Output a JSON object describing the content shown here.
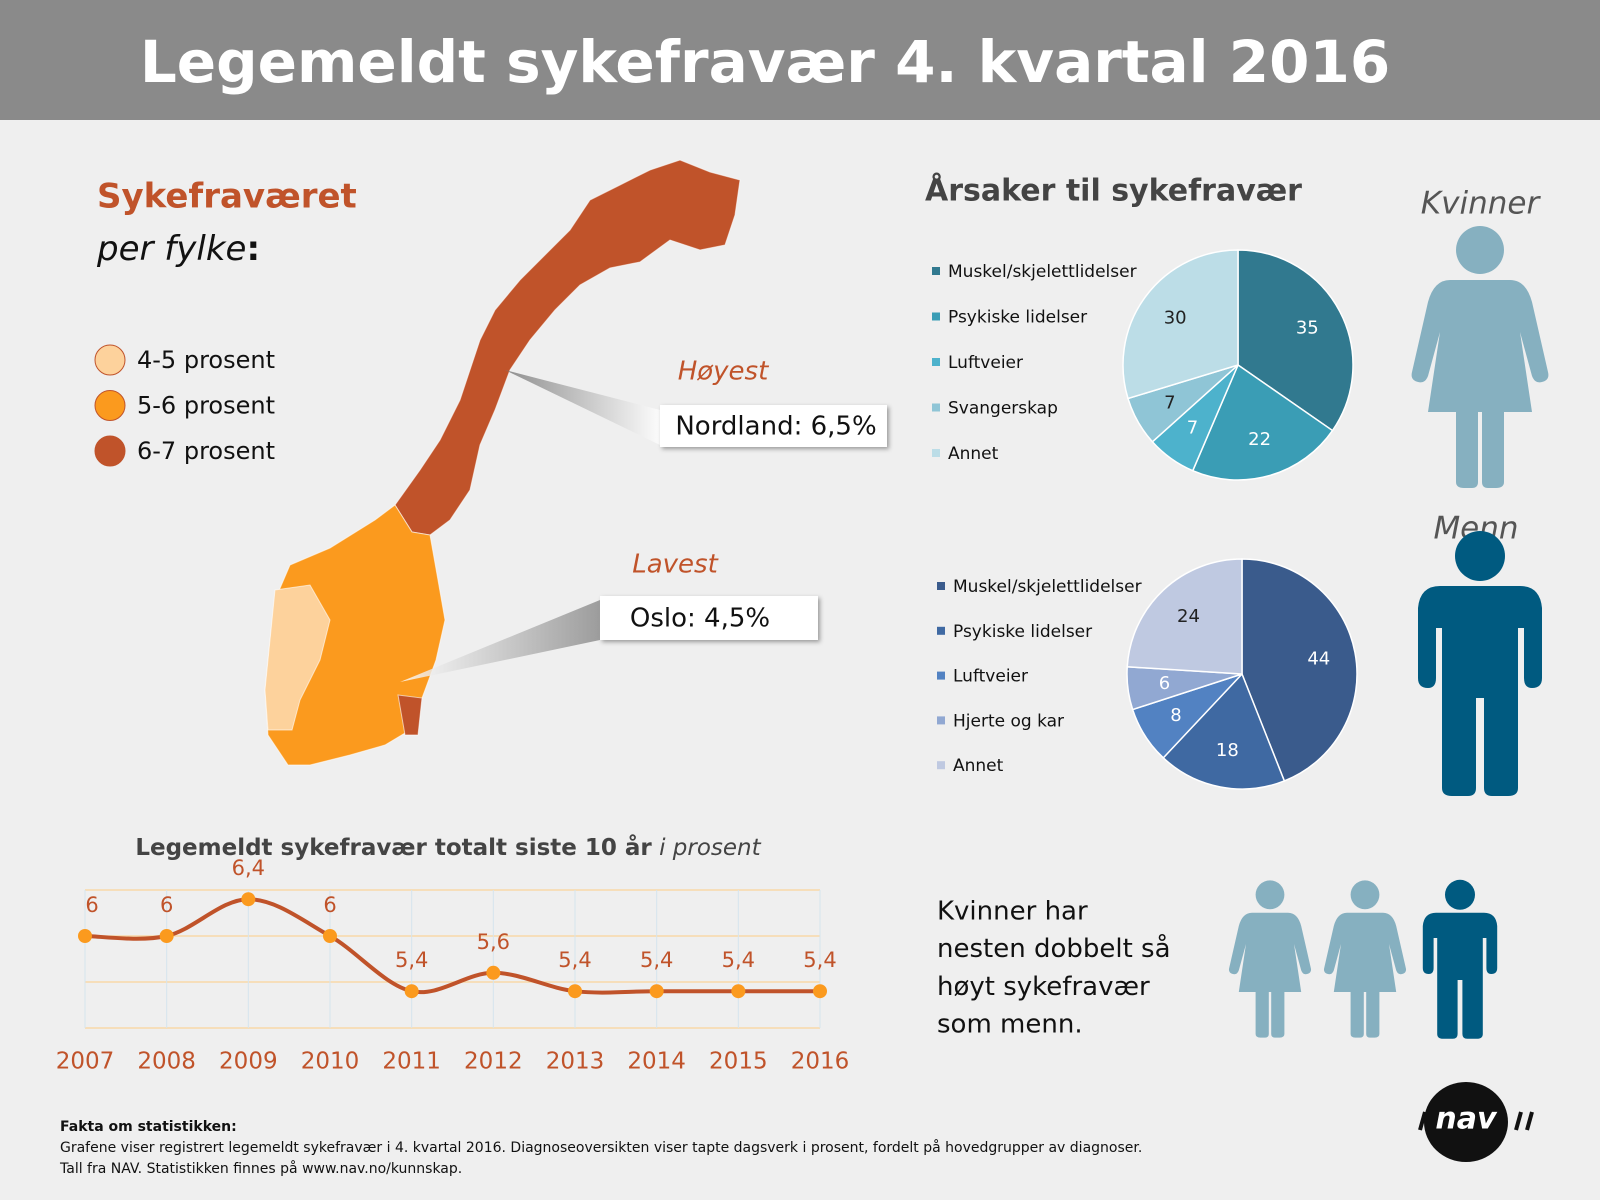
{
  "title": "Legemeldt sykefravær 4. kvartal 2016",
  "map": {
    "heading": "Sykefraværet",
    "subheading": "per fylke",
    "subheading_suffix": ":",
    "legend": [
      {
        "label": "4-5 prosent",
        "color": "#fdd29c"
      },
      {
        "label": "5-6 prosent",
        "color": "#fb9a1e"
      },
      {
        "label": "6-7 prosent",
        "color": "#c0532a"
      }
    ],
    "callouts": [
      {
        "heading": "Høyest",
        "text": "Nordland: 6,5%"
      },
      {
        "heading": "Lavest",
        "text": "Oslo: 4,5%"
      }
    ]
  },
  "chart_data": [
    {
      "type": "pie",
      "title": "Årsaker til sykefravær",
      "label": "Kvinner",
      "categories": [
        "Muskel/skjelettlidelser",
        "Psykiske lidelser",
        "Luftveier",
        "Svangerskap",
        "Annet"
      ],
      "values": [
        35,
        22,
        7,
        7,
        30
      ],
      "colors": [
        "#31798f",
        "#3a9db5",
        "#4db2cc",
        "#8fc5d6",
        "#bcdde7"
      ]
    },
    {
      "type": "pie",
      "label": "Menn",
      "categories": [
        "Muskel/skjelettlidelser",
        "Psykiske lidelser",
        "Luftveier",
        "Hjerte og kar",
        "Annet"
      ],
      "values": [
        44,
        18,
        8,
        6,
        24
      ],
      "colors": [
        "#3a5b8c",
        "#3f69a2",
        "#5282c2",
        "#91a8d2",
        "#bfc9e1"
      ]
    },
    {
      "type": "line",
      "title": "Legemeldt sykefravær totalt siste 10 år",
      "title_suffix": "i prosent",
      "categories": [
        "2007",
        "2008",
        "2009",
        "2010",
        "2011",
        "2012",
        "2013",
        "2014",
        "2015",
        "2016"
      ],
      "values": [
        6,
        6,
        6.4,
        6,
        5.4,
        5.6,
        5.4,
        5.4,
        5.4,
        5.4
      ],
      "value_labels": [
        "6",
        "6",
        "6,4",
        "6",
        "5,4",
        "5,6",
        "5,4",
        "5,4",
        "5,4",
        "5,4"
      ],
      "color": "#c0532a",
      "marker_color": "#fb9a1e",
      "ylim": [
        5,
        6.5
      ],
      "yticks": [
        5,
        5.5,
        6,
        6.5
      ],
      "grid": true
    }
  ],
  "comparison": {
    "lines": [
      "Kvinner har",
      "nesten dobbelt så",
      "høyt sykefravær",
      "som menn."
    ]
  },
  "footer": {
    "heading": "Fakta om statistikken:",
    "lines": [
      "Grafene viser registrert legemeldt sykefravær i 4. kvartal 2016. Diagnoseoversikten viser tapte dagsverk i prosent, fordelt på hovedgrupper av diagnoser.",
      "Tall fra NAV. Statistikken finnes på www.nav.no/kunnskap."
    ]
  },
  "logo": "nav"
}
